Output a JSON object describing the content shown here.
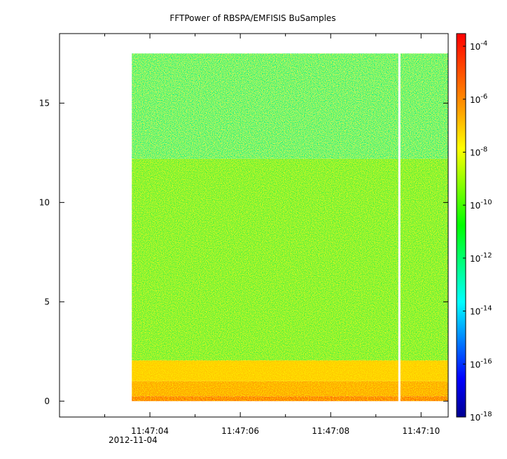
{
  "chart_data": {
    "type": "heatmap",
    "title": "FFTPower of RBSPA/EMFISIS  BuSamples",
    "xlabel": "",
    "ylabel": "",
    "date_label": "2012-11-04",
    "x_axis": {
      "type": "time",
      "range": [
        "11:47:02.0",
        "11:47:10.6"
      ],
      "tick_labels": [
        "11:47:04",
        "11:47:06",
        "11:47:08",
        "11:47:10"
      ],
      "tick_values_s": [
        4,
        6,
        8,
        10
      ]
    },
    "y_axis": {
      "range": [
        -0.8,
        18.5
      ],
      "ticks": [
        0,
        5,
        10,
        15
      ]
    },
    "colorbar": {
      "scale": "log",
      "range": [
        "1e-18",
        "3e-4"
      ],
      "tick_exponents": [
        -4,
        -6,
        -8,
        -10,
        -12,
        -14,
        -16,
        -18
      ],
      "tick_base": "10",
      "colormap": [
        "#000090",
        "#0000ff",
        "#0080ff",
        "#00ffff",
        "#00ff80",
        "#00ff00",
        "#80ff00",
        "#ffff00",
        "#ffa000",
        "#ff5000",
        "#ff0000"
      ]
    },
    "data_extent": {
      "x_start_s": 3.6,
      "x_end_s": 10.6,
      "y_min": 0,
      "y_max": 17.5,
      "gap_x_s": 9.52
    },
    "bands": [
      {
        "y_from": 0.0,
        "y_to": 0.25,
        "log_power": -8.0,
        "color": "#ff5a00"
      },
      {
        "y_from": 0.25,
        "y_to": 1.0,
        "log_power": -8.6,
        "color": "#ff9a00"
      },
      {
        "y_from": 1.0,
        "y_to": 2.05,
        "log_power": -9.2,
        "color": "#ffc400"
      },
      {
        "y_from": 2.05,
        "y_to": 12.2,
        "log_power": -10.4,
        "color": "#4ef23a"
      },
      {
        "y_from": 12.2,
        "y_to": 17.5,
        "log_power": -11.3,
        "color": "#14f27e"
      }
    ]
  }
}
